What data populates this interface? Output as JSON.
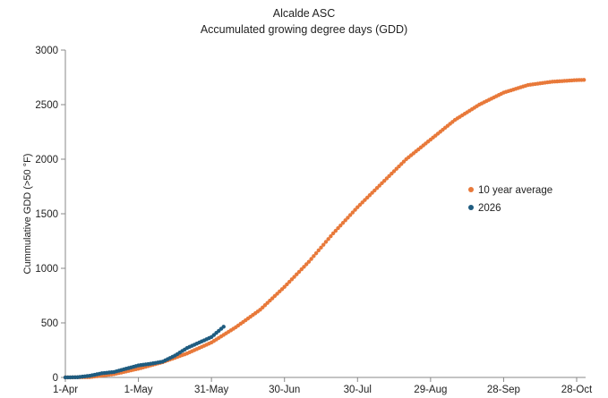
{
  "chart_data": {
    "type": "scatter",
    "title": "Alcalde ASC",
    "subtitle": "Accumulated growing degree days (GDD)",
    "ylabel": "Cummulative GDD  (>50 °F)",
    "xlabel": "",
    "ylim": [
      0,
      3000
    ],
    "y_ticks": [
      0,
      500,
      1000,
      1500,
      2000,
      2500,
      3000
    ],
    "x_ticks": [
      {
        "day": 0,
        "label": "1-Apr"
      },
      {
        "day": 30,
        "label": "1-May"
      },
      {
        "day": 60,
        "label": "31-May"
      },
      {
        "day": 90,
        "label": "30-Jun"
      },
      {
        "day": 120,
        "label": "30-Jul"
      },
      {
        "day": 150,
        "label": "29-Aug"
      },
      {
        "day": 180,
        "label": "28-Sep"
      },
      {
        "day": 210,
        "label": "28-Oct"
      }
    ],
    "grid": false,
    "legend_position": "right",
    "series": [
      {
        "name": "10 year average",
        "color": "#E8793A",
        "points": [
          {
            "x": "1-Apr",
            "y": 0
          },
          {
            "x": "11-Apr",
            "y": 3
          },
          {
            "x": "21-Apr",
            "y": 30
          },
          {
            "x": "1-May",
            "y": 80
          },
          {
            "x": "11-May",
            "y": 140
          },
          {
            "x": "21-May",
            "y": 220
          },
          {
            "x": "31-May",
            "y": 320
          },
          {
            "x": "10-Jun",
            "y": 460
          },
          {
            "x": "20-Jun",
            "y": 620
          },
          {
            "x": "30-Jun",
            "y": 830
          },
          {
            "x": "10-Jul",
            "y": 1060
          },
          {
            "x": "20-Jul",
            "y": 1320
          },
          {
            "x": "30-Jul",
            "y": 1560
          },
          {
            "x": "9-Aug",
            "y": 1780
          },
          {
            "x": "19-Aug",
            "y": 2000
          },
          {
            "x": "29-Aug",
            "y": 2180
          },
          {
            "x": "8-Sep",
            "y": 2360
          },
          {
            "x": "18-Sep",
            "y": 2500
          },
          {
            "x": "28-Sep",
            "y": 2610
          },
          {
            "x": "8-Oct",
            "y": 2680
          },
          {
            "x": "18-Oct",
            "y": 2710
          },
          {
            "x": "28-Oct",
            "y": 2725
          },
          {
            "x": "31-Oct",
            "y": 2727
          }
        ]
      },
      {
        "name": "2026",
        "color": "#1F5C80",
        "points": [
          {
            "x": "1-Apr",
            "y": 0
          },
          {
            "x": "6-Apr",
            "y": 2
          },
          {
            "x": "11-Apr",
            "y": 15
          },
          {
            "x": "16-Apr",
            "y": 38
          },
          {
            "x": "21-Apr",
            "y": 50
          },
          {
            "x": "26-Apr",
            "y": 80
          },
          {
            "x": "1-May",
            "y": 110
          },
          {
            "x": "6-May",
            "y": 125
          },
          {
            "x": "11-May",
            "y": 145
          },
          {
            "x": "16-May",
            "y": 200
          },
          {
            "x": "21-May",
            "y": 270
          },
          {
            "x": "26-May",
            "y": 320
          },
          {
            "x": "31-May",
            "y": 370
          },
          {
            "x": "5-Jun",
            "y": 465
          }
        ]
      }
    ]
  }
}
